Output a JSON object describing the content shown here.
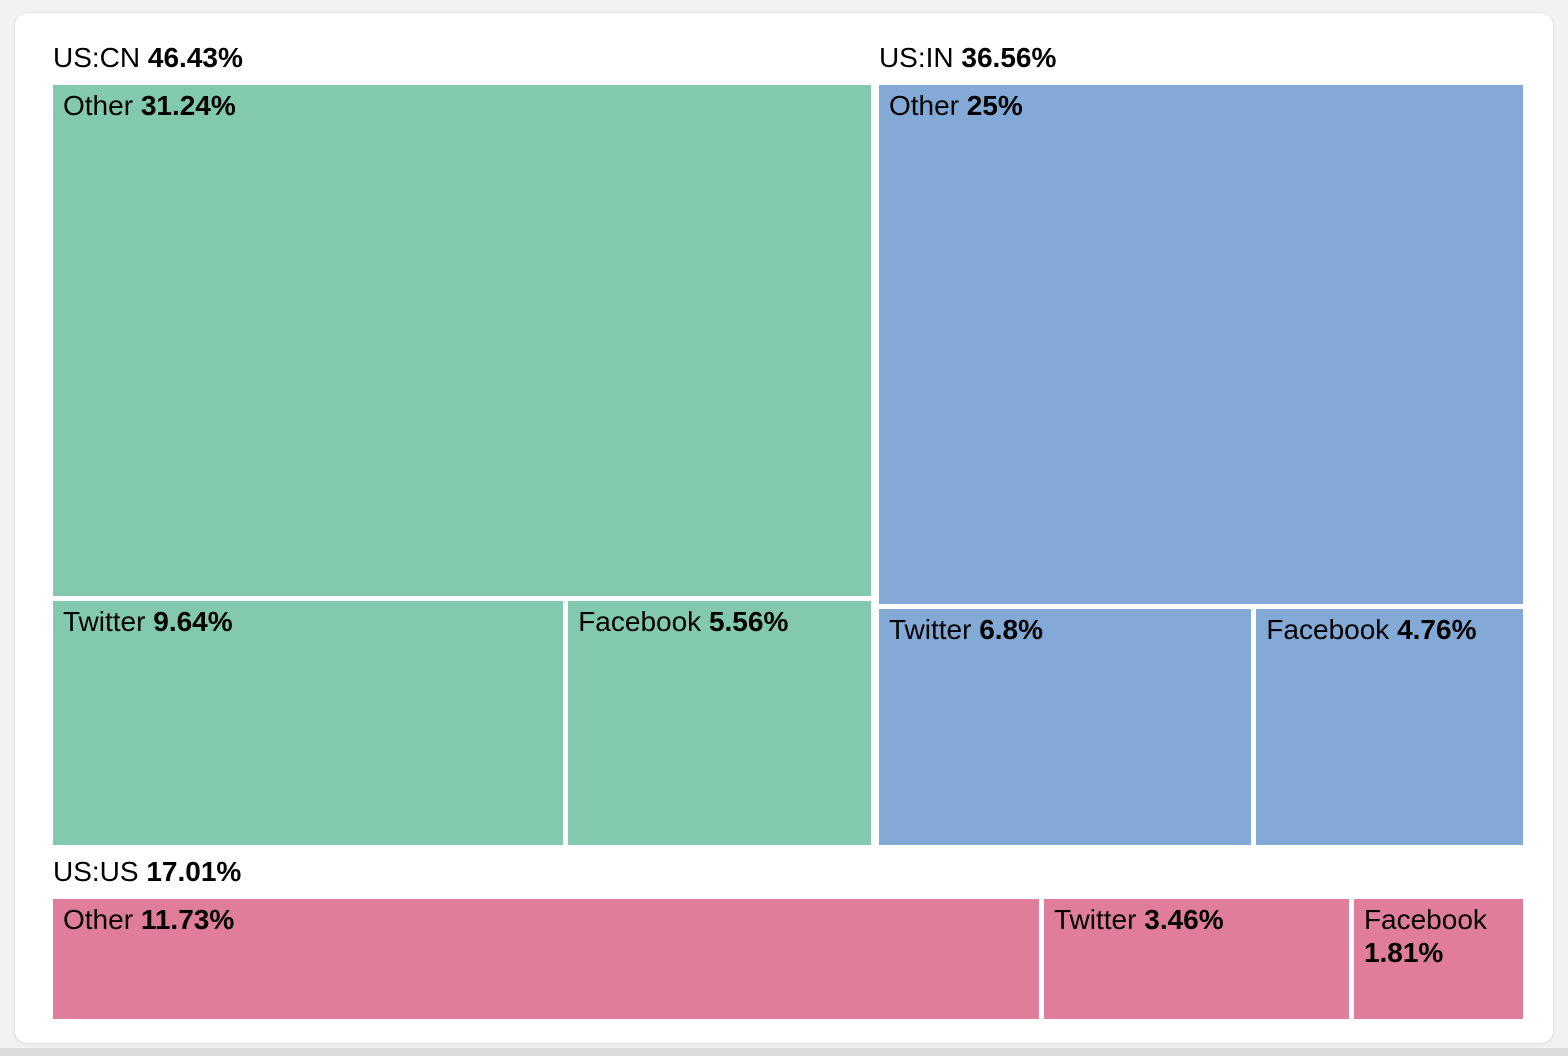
{
  "chart_data": {
    "type": "treemap",
    "unit": "%",
    "legend": "none",
    "text_color": "#000000",
    "background_color": "#ffffff",
    "groups": [
      {
        "label": "US:CN",
        "pct_label": "46.43%",
        "value": 46.43,
        "color": "#82C9AE",
        "children": [
          {
            "label": "Other",
            "pct_label": "31.24%",
            "value": 31.24
          },
          {
            "label": "Twitter",
            "pct_label": "9.64%",
            "value": 9.64
          },
          {
            "label": "Facebook",
            "pct_label": "5.56%",
            "value": 5.56
          }
        ]
      },
      {
        "label": "US:IN",
        "pct_label": "36.56%",
        "value": 36.56,
        "color": "#83A9D6",
        "children": [
          {
            "label": "Other",
            "pct_label": "25%",
            "value": 25
          },
          {
            "label": "Twitter",
            "pct_label": "6.8%",
            "value": 6.8
          },
          {
            "label": "Facebook",
            "pct_label": "4.76%",
            "value": 4.76
          }
        ]
      },
      {
        "label": "US:US",
        "pct_label": "17.01%",
        "value": 17.01,
        "color": "#E07D9B",
        "children": [
          {
            "label": "Other",
            "pct_label": "11.73%",
            "value": 11.73
          },
          {
            "label": "Twitter",
            "pct_label": "3.46%",
            "value": 3.46
          },
          {
            "label": "Facebook",
            "pct_label": "1.81%",
            "value": 1.81
          }
        ]
      }
    ]
  }
}
